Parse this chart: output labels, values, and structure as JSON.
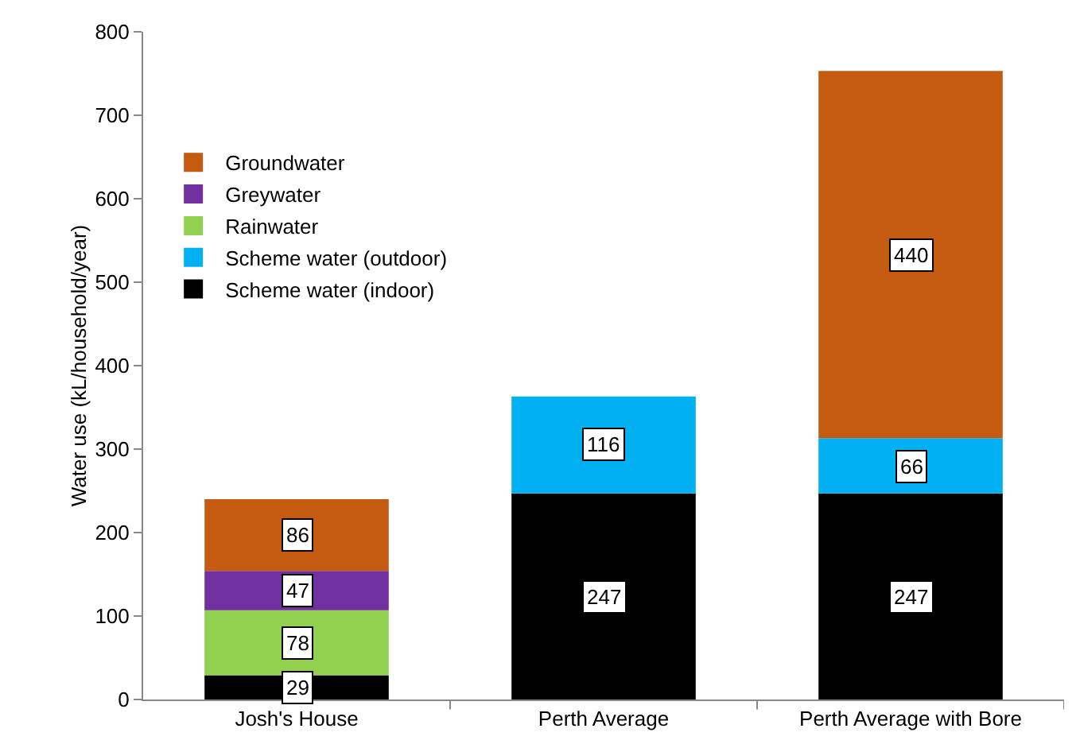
{
  "chart_data": {
    "type": "bar",
    "stacked": true,
    "ylabel": "Water use (kL/household/year)",
    "categories": [
      "Josh's House",
      "Perth Average",
      "Perth Average with Bore"
    ],
    "series": [
      {
        "name": "Scheme water (indoor)",
        "color": "#000000",
        "values": [
          29,
          247,
          247
        ]
      },
      {
        "name": "Scheme water (outdoor)",
        "color": "#00b0f0",
        "values": [
          null,
          116,
          66
        ]
      },
      {
        "name": "Rainwater",
        "color": "#92d050",
        "values": [
          78,
          null,
          null
        ]
      },
      {
        "name": "Greywater",
        "color": "#7030a0",
        "values": [
          47,
          null,
          null
        ]
      },
      {
        "name": "Groundwater",
        "color": "#c55a11",
        "values": [
          86,
          null,
          440
        ]
      }
    ],
    "ylim": [
      0,
      800
    ],
    "yticks": [
      0,
      100,
      200,
      300,
      400,
      500,
      600,
      700,
      800
    ],
    "grid": false,
    "legend": "top left",
    "data_labels": true
  }
}
